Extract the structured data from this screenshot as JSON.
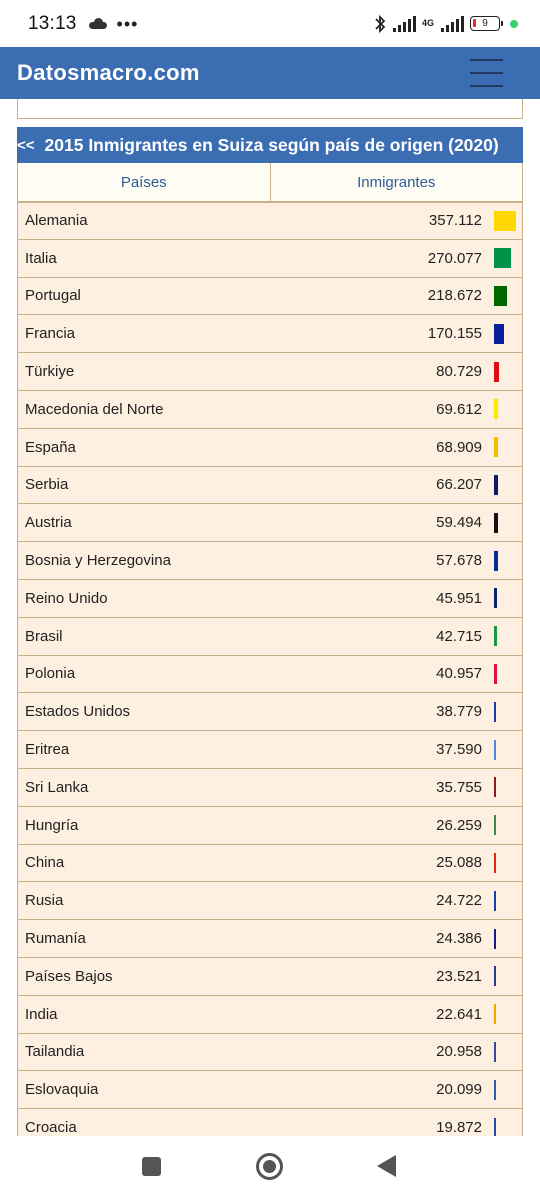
{
  "status_bar": {
    "time": "13:13",
    "network_label": "4G",
    "battery_level": "9"
  },
  "header": {
    "site_name": "Datosmacro.com"
  },
  "table": {
    "back_link": "<<",
    "caption": "2015 Inmigrantes en Suiza según país de origen (2020)",
    "col_paises": "Países",
    "col_inmigrantes": "Inmigrantes",
    "max_value": 357112,
    "rows": [
      {
        "country": "Alemania",
        "value": "357.112",
        "num": 357112,
        "color": "#ffd700"
      },
      {
        "country": "Italia",
        "value": "270.077",
        "num": 270077,
        "color": "#009246"
      },
      {
        "country": "Portugal",
        "value": "218.672",
        "num": 218672,
        "color": "#006600"
      },
      {
        "country": "Francia",
        "value": "170.155",
        "num": 170155,
        "color": "#0a1f9c"
      },
      {
        "country": "Türkiye",
        "value": "80.729",
        "num": 80729,
        "color": "#e30a17"
      },
      {
        "country": "Macedonia del Norte",
        "value": "69.612",
        "num": 69612,
        "color": "#ffe600"
      },
      {
        "country": "España",
        "value": "68.909",
        "num": 68909,
        "color": "#f1bf00"
      },
      {
        "country": "Serbia",
        "value": "66.207",
        "num": 66207,
        "color": "#0c1c6b"
      },
      {
        "country": "Austria",
        "value": "59.494",
        "num": 59494,
        "color": "#111111"
      },
      {
        "country": "Bosnia y Herzegovina",
        "value": "57.678",
        "num": 57678,
        "color": "#0a2a9a"
      },
      {
        "country": "Reino Unido",
        "value": "45.951",
        "num": 45951,
        "color": "#0a2472"
      },
      {
        "country": "Brasil",
        "value": "42.715",
        "num": 42715,
        "color": "#169b3e"
      },
      {
        "country": "Polonia",
        "value": "40.957",
        "num": 40957,
        "color": "#dc143c"
      },
      {
        "country": "Estados Unidos",
        "value": "38.779",
        "num": 38779,
        "color": "#1e3aa8"
      },
      {
        "country": "Eritrea",
        "value": "37.590",
        "num": 37590,
        "color": "#4a89dc"
      },
      {
        "country": "Sri Lanka",
        "value": "35.755",
        "num": 35755,
        "color": "#8d1b1b"
      },
      {
        "country": "Hungría",
        "value": "26.259",
        "num": 26259,
        "color": "#3a8a4a"
      },
      {
        "country": "China",
        "value": "25.088",
        "num": 25088,
        "color": "#de2910"
      },
      {
        "country": "Rusia",
        "value": "24.722",
        "num": 24722,
        "color": "#1c3cb0"
      },
      {
        "country": "Rumanía",
        "value": "24.386",
        "num": 24386,
        "color": "#1a1a8a"
      },
      {
        "country": "Países Bajos",
        "value": "23.521",
        "num": 23521,
        "color": "#23408e"
      },
      {
        "country": "India",
        "value": "22.641",
        "num": 22641,
        "color": "#f4a300"
      },
      {
        "country": "Tailandia",
        "value": "20.958",
        "num": 20958,
        "color": "#3a4a9a"
      },
      {
        "country": "Eslovaquia",
        "value": "20.099",
        "num": 20099,
        "color": "#3a5ab0"
      },
      {
        "country": "Croacia",
        "value": "19.872",
        "num": 19872,
        "color": "#2a4aa8"
      }
    ]
  }
}
